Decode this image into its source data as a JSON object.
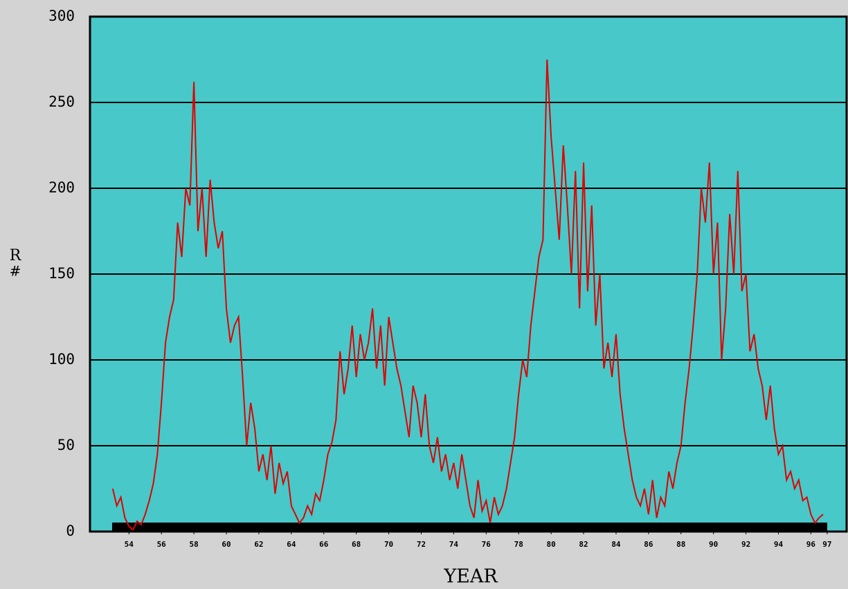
{
  "chart_data": {
    "type": "line",
    "xlabel": "YEAR",
    "ylabel": [
      "R",
      "#"
    ],
    "xlim": [
      1951.6,
      1998.2
    ],
    "ylim": [
      0,
      300
    ],
    "yticks": [
      0,
      50,
      100,
      150,
      200,
      250,
      300
    ],
    "xticks": [
      {
        "value": 1954,
        "label": "54"
      },
      {
        "value": 1956,
        "label": "56"
      },
      {
        "value": 1958,
        "label": "58"
      },
      {
        "value": 1960,
        "label": "60"
      },
      {
        "value": 1962,
        "label": "62"
      },
      {
        "value": 1964,
        "label": "64"
      },
      {
        "value": 1966,
        "label": "66"
      },
      {
        "value": 1968,
        "label": "68"
      },
      {
        "value": 1970,
        "label": "70"
      },
      {
        "value": 1972,
        "label": "72"
      },
      {
        "value": 1974,
        "label": "74"
      },
      {
        "value": 1976,
        "label": "76"
      },
      {
        "value": 1978,
        "label": "78"
      },
      {
        "value": 1980,
        "label": "80"
      },
      {
        "value": 1982,
        "label": "82"
      },
      {
        "value": 1984,
        "label": "84"
      },
      {
        "value": 1986,
        "label": "86"
      },
      {
        "value": 1988,
        "label": "88"
      },
      {
        "value": 1990,
        "label": "90"
      },
      {
        "value": 1992,
        "label": "92"
      },
      {
        "value": 1994,
        "label": "94"
      },
      {
        "value": 1996,
        "label": "96"
      },
      {
        "value": 1997,
        "label": "97"
      }
    ],
    "grid": true,
    "background": "#48c8c8",
    "x": [
      1953.0,
      1953.25,
      1953.5,
      1953.75,
      1954.0,
      1954.25,
      1954.5,
      1954.75,
      1955.0,
      1955.25,
      1955.5,
      1955.75,
      1956.0,
      1956.25,
      1956.5,
      1956.75,
      1957.0,
      1957.25,
      1957.5,
      1957.75,
      1958.0,
      1958.25,
      1958.5,
      1958.75,
      1959.0,
      1959.25,
      1959.5,
      1959.75,
      1960.0,
      1960.25,
      1960.5,
      1960.75,
      1961.0,
      1961.25,
      1961.5,
      1961.75,
      1962.0,
      1962.25,
      1962.5,
      1962.75,
      1963.0,
      1963.25,
      1963.5,
      1963.75,
      1964.0,
      1964.25,
      1964.5,
      1964.75,
      1965.0,
      1965.25,
      1965.5,
      1965.75,
      1966.0,
      1966.25,
      1966.5,
      1966.75,
      1967.0,
      1967.25,
      1967.5,
      1967.75,
      1968.0,
      1968.25,
      1968.5,
      1968.75,
      1969.0,
      1969.25,
      1969.5,
      1969.75,
      1970.0,
      1970.25,
      1970.5,
      1970.75,
      1971.0,
      1971.25,
      1971.5,
      1971.75,
      1972.0,
      1972.25,
      1972.5,
      1972.75,
      1973.0,
      1973.25,
      1973.5,
      1973.75,
      1974.0,
      1974.25,
      1974.5,
      1974.75,
      1975.0,
      1975.25,
      1975.5,
      1975.75,
      1976.0,
      1976.25,
      1976.5,
      1976.75,
      1977.0,
      1977.25,
      1977.5,
      1977.75,
      1978.0,
      1978.25,
      1978.5,
      1978.75,
      1979.0,
      1979.25,
      1979.5,
      1979.75,
      1980.0,
      1980.25,
      1980.5,
      1980.75,
      1981.0,
      1981.25,
      1981.5,
      1981.75,
      1982.0,
      1982.25,
      1982.5,
      1982.75,
      1983.0,
      1983.25,
      1983.5,
      1983.75,
      1984.0,
      1984.25,
      1984.5,
      1984.75,
      1985.0,
      1985.25,
      1985.5,
      1985.75,
      1986.0,
      1986.25,
      1986.5,
      1986.75,
      1987.0,
      1987.25,
      1987.5,
      1987.75,
      1988.0,
      1988.25,
      1988.5,
      1988.75,
      1989.0,
      1989.25,
      1989.5,
      1989.75,
      1990.0,
      1990.25,
      1990.5,
      1990.75,
      1991.0,
      1991.25,
      1991.5,
      1991.75,
      1992.0,
      1992.25,
      1992.5,
      1992.75,
      1993.0,
      1993.25,
      1993.5,
      1993.75,
      1994.0,
      1994.25,
      1994.5,
      1994.75,
      1995.0,
      1995.25,
      1995.5,
      1995.75,
      1996.0,
      1996.25,
      1996.5,
      1996.75
    ],
    "series": [
      {
        "color": "#e00000",
        "values": [
          25,
          15,
          20,
          8,
          3,
          1,
          6,
          4,
          10,
          18,
          28,
          45,
          75,
          110,
          125,
          135,
          180,
          160,
          200,
          190,
          262,
          175,
          200,
          160,
          205,
          180,
          165,
          175,
          130,
          110,
          120,
          125,
          90,
          50,
          75,
          60,
          35,
          45,
          30,
          50,
          22,
          40,
          28,
          35,
          15,
          10,
          5,
          8,
          15,
          10,
          22,
          18,
          30,
          45,
          52,
          65,
          105,
          80,
          95,
          120,
          90,
          115,
          100,
          110,
          130,
          95,
          120,
          85,
          125,
          110,
          95,
          85,
          70,
          55,
          85,
          75,
          55,
          80,
          50,
          40,
          55,
          35,
          45,
          30,
          40,
          25,
          45,
          30,
          15,
          8,
          30,
          12,
          18,
          5,
          20,
          10,
          15,
          25,
          40,
          55,
          80,
          100,
          90,
          120,
          140,
          160,
          170,
          275,
          230,
          200,
          170,
          225,
          190,
          150,
          210,
          130,
          215,
          140,
          190,
          120,
          150,
          95,
          110,
          90,
          115,
          80,
          60,
          45,
          30,
          20,
          15,
          25,
          10,
          30,
          8,
          20,
          15,
          35,
          25,
          40,
          50,
          75,
          95,
          120,
          150,
          200,
          180,
          215,
          150,
          180,
          100,
          130,
          185,
          150,
          210,
          140,
          150,
          105,
          115,
          95,
          85,
          65,
          85,
          60,
          45,
          50,
          30,
          35,
          25,
          30,
          18,
          20,
          10,
          5,
          8,
          10
        ]
      }
    ]
  }
}
